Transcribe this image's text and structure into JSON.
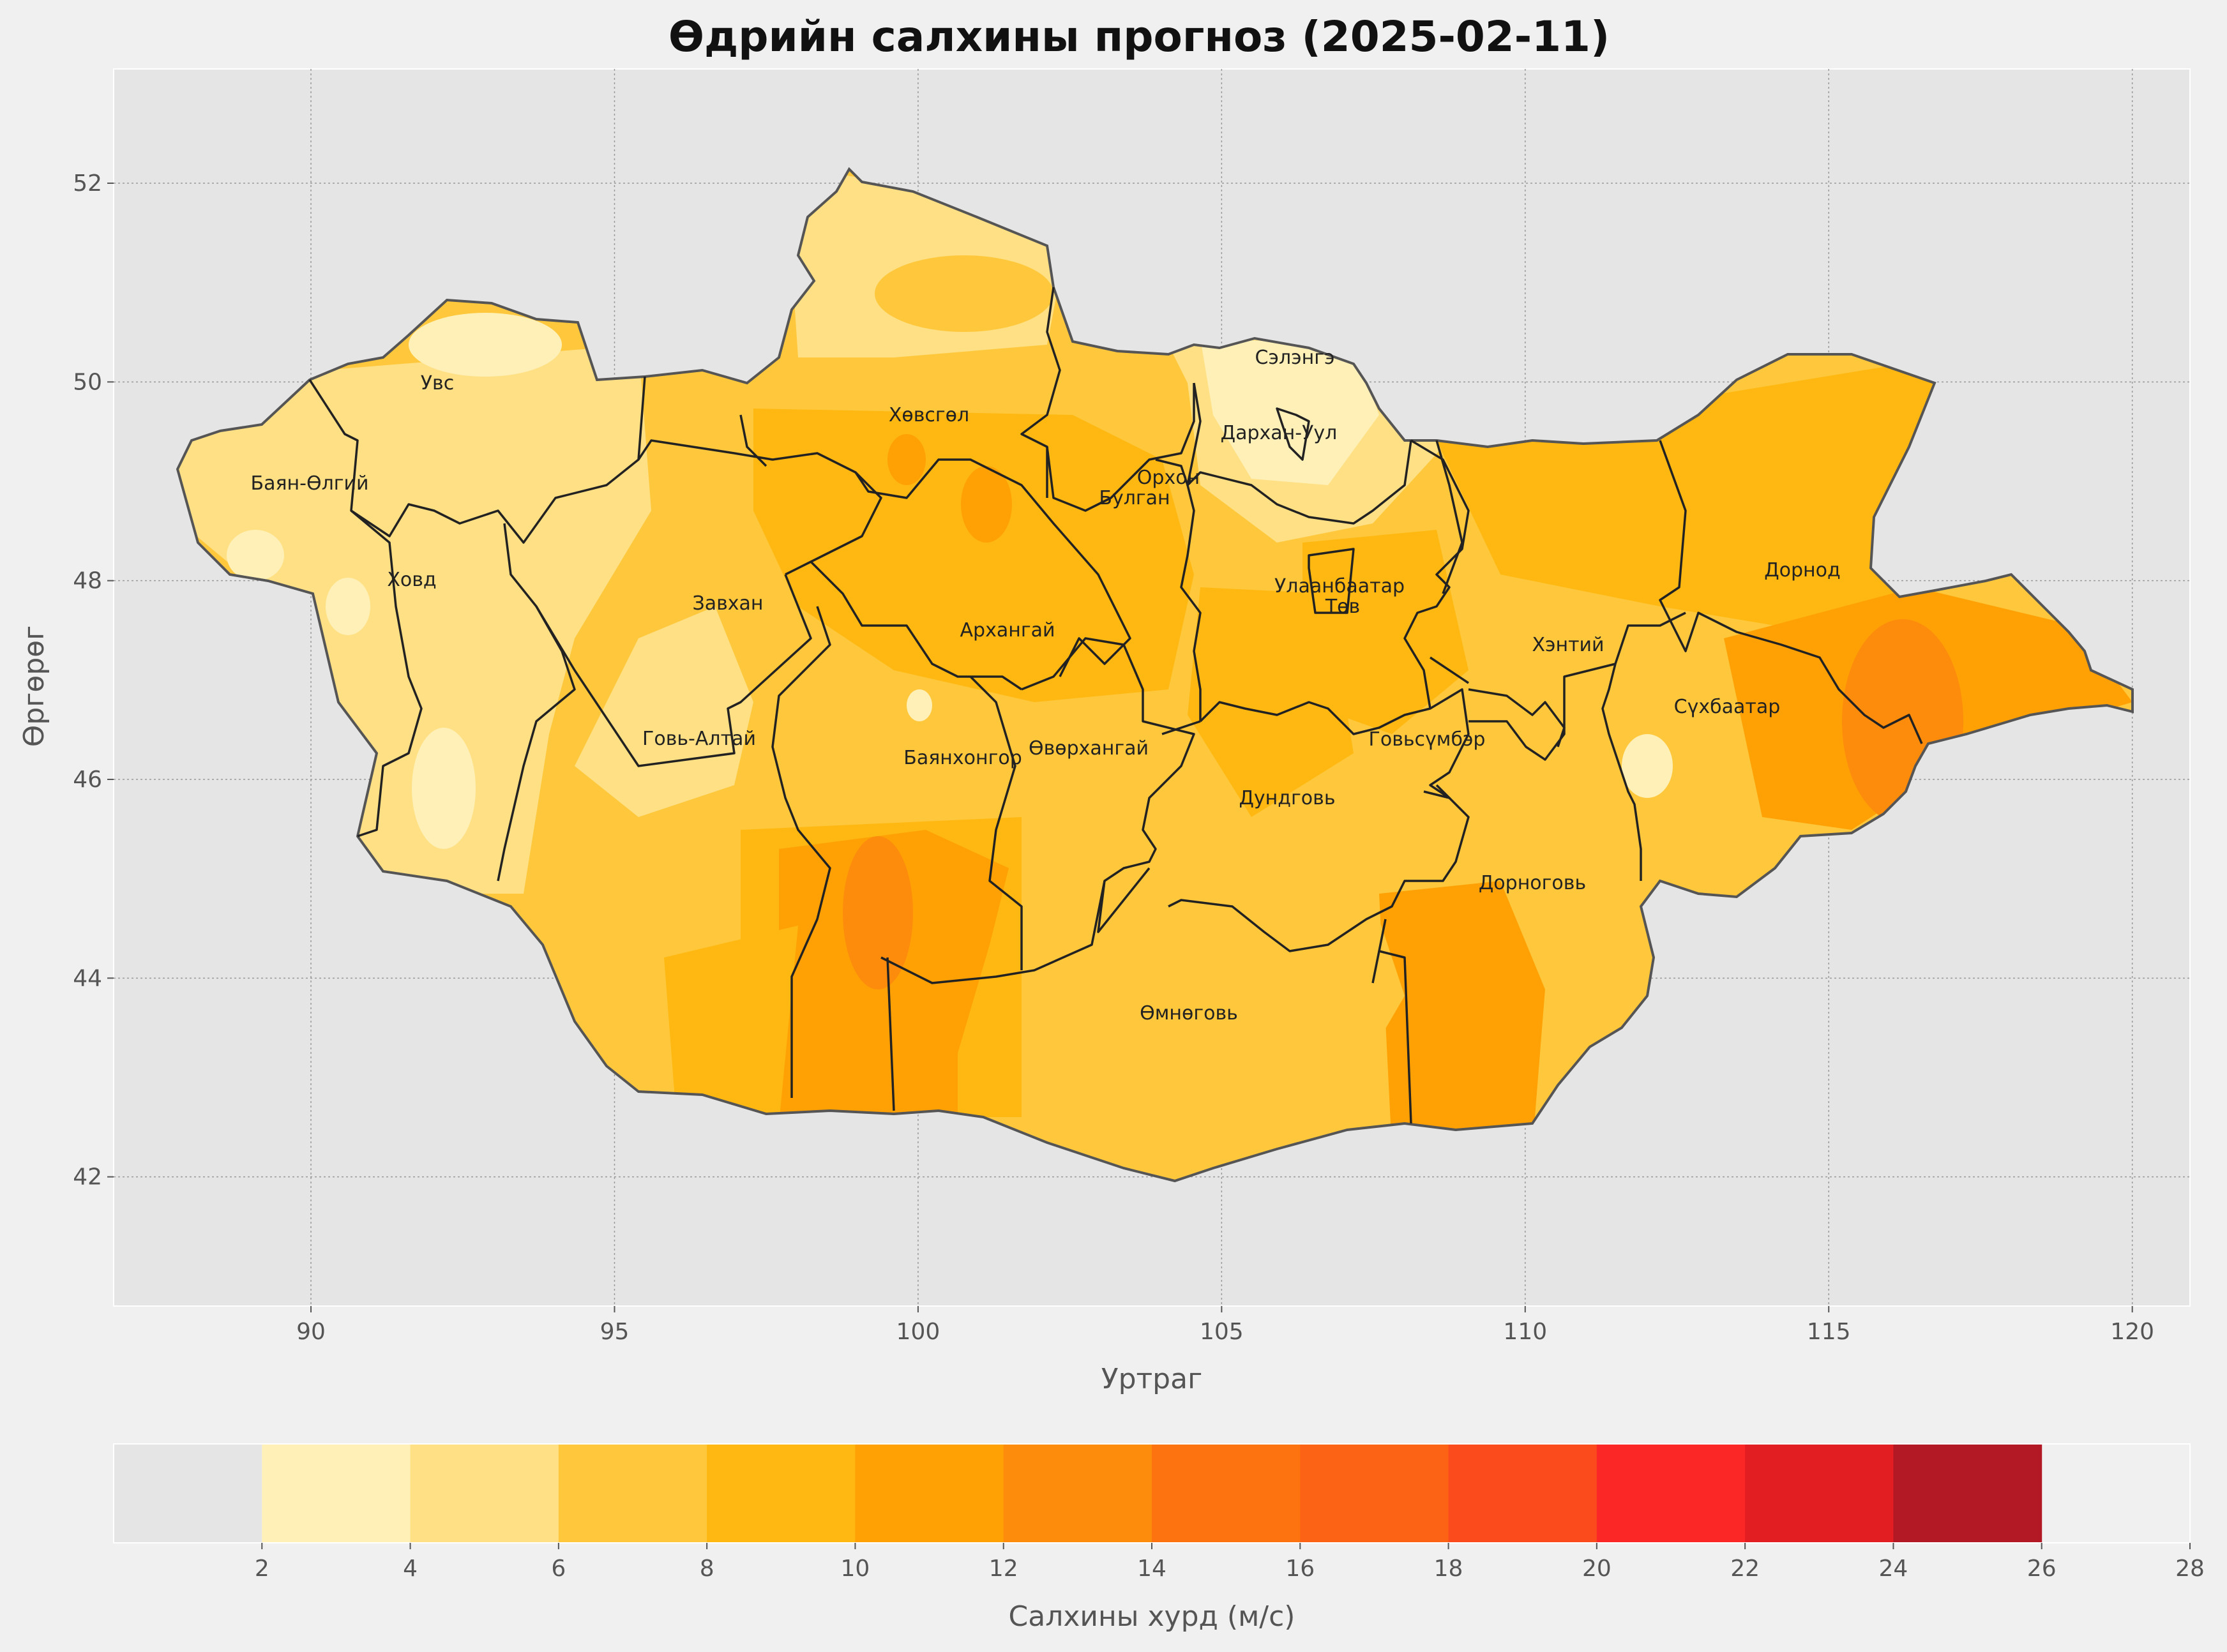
{
  "title": "Өдрийн салхины прогноз (2025-02-11)",
  "xlabel": "Уртраг",
  "ylabel": "Өргөрөг",
  "x_ticks": [
    "90",
    "95",
    "100",
    "105",
    "110",
    "115",
    "120"
  ],
  "y_ticks": [
    "42",
    "44",
    "46",
    "48",
    "50",
    "52"
  ],
  "colorbar": {
    "label": "Салхины хурд (м/с)",
    "ticks": [
      "2",
      "4",
      "6",
      "8",
      "10",
      "12",
      "14",
      "16",
      "18",
      "20",
      "22",
      "24",
      "26",
      "28"
    ],
    "colors": [
      "#e5e5e5",
      "#fff0b8",
      "#ffe084",
      "#ffc83c",
      "#ffb812",
      "#ffa105",
      "#fd8c0c",
      "#fc7310",
      "#fc6315",
      "#fb4a1c",
      "#fb2626",
      "#e21e23",
      "#b31925"
    ]
  },
  "provinces": [
    "Увс",
    "Баян-Өлгий",
    "Ховд",
    "Завхан",
    "Говь-Алтай",
    "Хөвсгөл",
    "Архангай",
    "Баянхонгор",
    "Өвөрхангай",
    "Булган",
    "Орхон",
    "Сэлэнгэ",
    "Дархан-Уул",
    "Улаанбаатар",
    "Төв",
    "Дундговь",
    "Говьсүмбэр",
    "Өмнөговь",
    "Дорноговь",
    "Хэнтий",
    "Дорнод",
    "Сүхбаатар"
  ],
  "map_colors": {
    "background": "#f0f0f0",
    "plot_bg": "#e5e5e5",
    "border": "#555555",
    "province_line": "#222222"
  }
}
